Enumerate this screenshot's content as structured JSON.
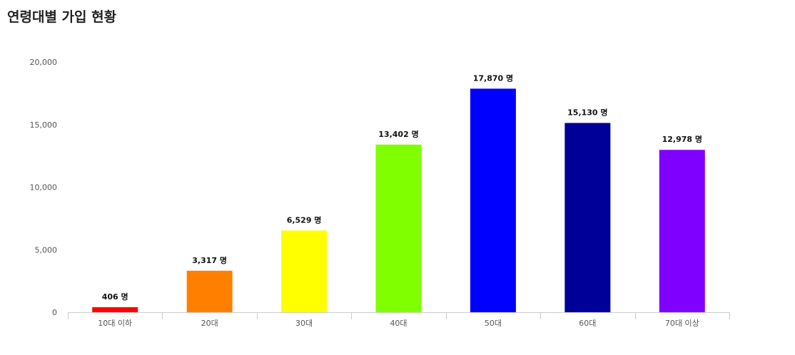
{
  "header": {
    "title": "연령대별 가입 현황"
  },
  "chart_data": {
    "type": "bar",
    "title": "",
    "xlabel": "",
    "ylabel": "",
    "ylim": [
      0,
      20000
    ],
    "yticks": [
      0,
      5000,
      10000,
      15000,
      20000
    ],
    "ytick_labels": [
      "0",
      "5,000",
      "10,000",
      "15,000",
      "20,000"
    ],
    "categories": [
      "10대 이하",
      "20대",
      "30대",
      "40대",
      "50대",
      "60대",
      "70대 이상"
    ],
    "values": [
      406,
      3317,
      6529,
      13402,
      17870,
      15130,
      12978
    ],
    "value_labels": [
      "406 명",
      "3,317 명",
      "6,529 명",
      "13,402 명",
      "17,870 명",
      "15,130 명",
      "12,978 명"
    ],
    "colors": [
      "#ff0000",
      "#ff8000",
      "#ffff00",
      "#80ff00",
      "#0000ff",
      "#000099",
      "#8000ff"
    ],
    "grid": false,
    "legend": "none"
  }
}
